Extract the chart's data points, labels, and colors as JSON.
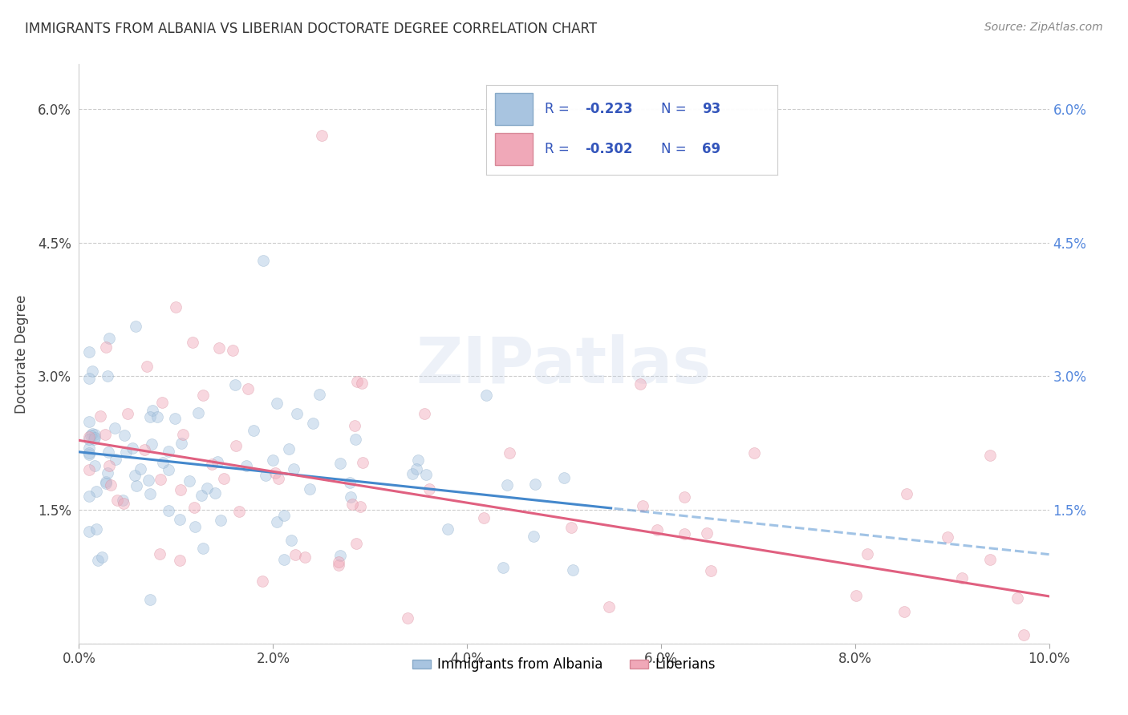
{
  "title": "IMMIGRANTS FROM ALBANIA VS LIBERIAN DOCTORATE DEGREE CORRELATION CHART",
  "source": "Source: ZipAtlas.com",
  "ylabel": "Doctorate Degree",
  "xlim": [
    0.0,
    0.1
  ],
  "ylim": [
    0.0,
    0.065
  ],
  "xticks": [
    0.0,
    0.02,
    0.04,
    0.06,
    0.08,
    0.1
  ],
  "xticklabels": [
    "0.0%",
    "2.0%",
    "4.0%",
    "6.0%",
    "8.0%",
    "10.0%"
  ],
  "yticks": [
    0.0,
    0.015,
    0.03,
    0.045,
    0.06
  ],
  "yticklabels": [
    "",
    "1.5%",
    "3.0%",
    "4.5%",
    "6.0%"
  ],
  "right_yticks": [
    0.0,
    0.015,
    0.03,
    0.045,
    0.06
  ],
  "right_yticklabels": [
    "",
    "1.5%",
    "3.0%",
    "4.5%",
    "6.0%"
  ],
  "grid_color": "#cccccc",
  "background_color": "#ffffff",
  "albania_color": "#a8c4e0",
  "albania_edge_color": "#88aac8",
  "liberia_color": "#f0a8b8",
  "liberia_edge_color": "#d88898",
  "albania_line_color": "#4488cc",
  "liberia_line_color": "#e06080",
  "albania_R": -0.223,
  "albania_N": 93,
  "liberia_R": -0.302,
  "liberia_N": 69,
  "watermark": "ZIPatlas",
  "marker_size": 100,
  "marker_alpha": 0.45,
  "line_width": 2.2,
  "albania_intercept": 0.0215,
  "albania_slope": -0.115,
  "liberia_intercept": 0.0228,
  "liberia_slope": -0.175,
  "legend_text_color": "#3355bb",
  "title_color": "#333333",
  "source_color": "#888888"
}
